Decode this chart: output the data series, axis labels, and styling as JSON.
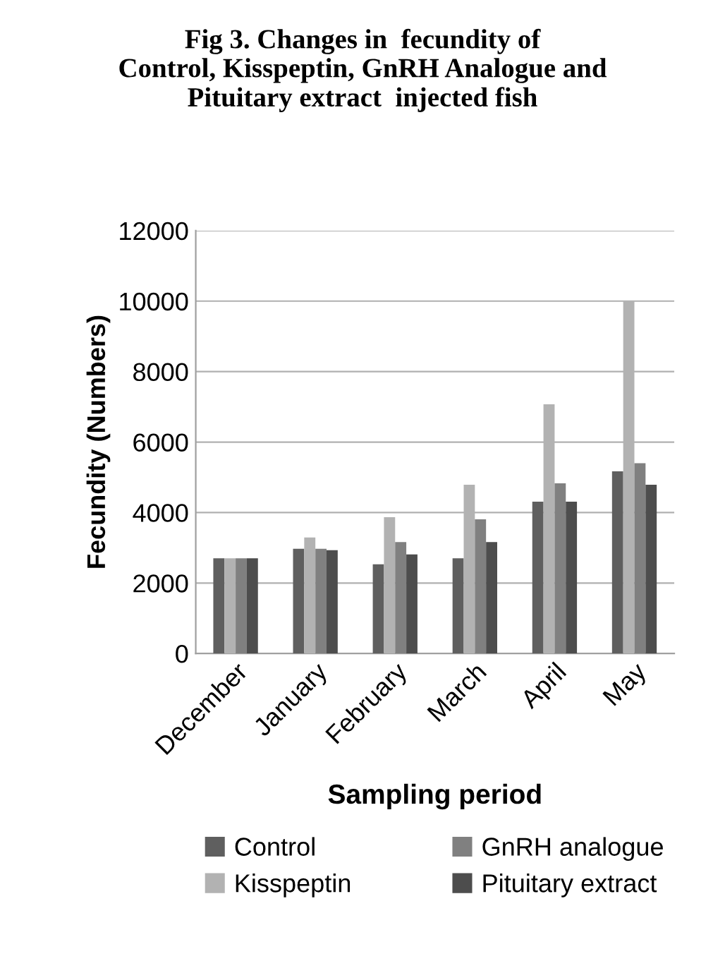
{
  "chart_data": {
    "type": "bar",
    "title": "Fig 3. Changes in  fecundity of\nControl, Kisspeptin, GnRH Analogue and\nPituitary extract  injected fish",
    "xlabel": "Sampling period",
    "ylabel": "Fecundity (Numbers)",
    "categories": [
      "December",
      "January",
      "February",
      "March",
      "April",
      "May"
    ],
    "series": [
      {
        "name": "Control",
        "color": "#5f5f5f",
        "values": [
          2700,
          2970,
          2530,
          2700,
          4310,
          5170
        ]
      },
      {
        "name": "Kisspeptin",
        "color": "#b2b2b2",
        "values": [
          2700,
          3290,
          3870,
          4790,
          7070,
          10000
        ]
      },
      {
        "name": "GnRH analogue",
        "color": "#808080",
        "values": [
          2700,
          2970,
          3160,
          3810,
          4830,
          5400
        ]
      },
      {
        "name": "Pituitary extract",
        "color": "#4d4d4d",
        "values": [
          2700,
          2930,
          2810,
          3160,
          4310,
          4790
        ]
      }
    ],
    "ylim": [
      0,
      12000
    ],
    "yticks": [
      0,
      2000,
      4000,
      6000,
      8000,
      10000,
      12000
    ],
    "grid": "y",
    "legend": "bottom"
  }
}
